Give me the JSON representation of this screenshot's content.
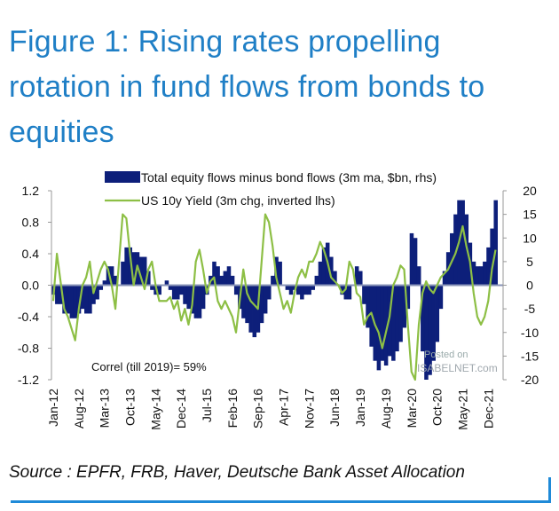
{
  "title": "Figure 1: Rising rates propelling rotation in fund flows from bonds to equities",
  "source": "Source : EPFR, FRB, Haver, Deutsche Bank Asset Allocation",
  "watermark": {
    "line1": "Posted on",
    "line2": "ISABELNET.com"
  },
  "chart_data": {
    "type": "bar+line",
    "title": "",
    "annotation": "Correl (till 2019)= 59%",
    "x_tick_labels": [
      "Jan-12",
      "Aug-12",
      "Mar-13",
      "Oct-13",
      "May-14",
      "Dec-14",
      "Jul-15",
      "Feb-16",
      "Sep-16",
      "Apr-17",
      "Nov-17",
      "Jun-18",
      "Jan-19",
      "Aug-19",
      "Mar-20",
      "Oct-20",
      "May-21",
      "Dec-21"
    ],
    "x_start": "Jan-12",
    "x_frequency": "monthly",
    "left_axis": {
      "range": [
        -1.2,
        1.2
      ],
      "ticks": [
        "1.2",
        "0.8",
        "0.4",
        "0.0",
        "-0.4",
        "-0.8",
        "-1.2"
      ],
      "inverted_series": true
    },
    "right_axis": {
      "range": [
        -20,
        20
      ],
      "ticks": [
        "20",
        "15",
        "10",
        "5",
        "0",
        "-5",
        "-10",
        "-15",
        "-20"
      ]
    },
    "legend_placement": "top",
    "grid": false,
    "series": [
      {
        "name": "Total equity flows minus bond flows (3m ma, $bn, rhs)",
        "type": "bar",
        "axis": "right",
        "color": "#0d1f7a",
        "values": [
          -2,
          -4,
          -4,
          -6,
          -6,
          -7,
          -7,
          -6,
          -5,
          -6,
          -6,
          -4,
          -3,
          -1,
          1,
          4,
          4,
          2,
          0,
          5,
          8,
          8,
          7,
          7,
          6,
          6,
          3,
          -1,
          -2,
          -2,
          0,
          1,
          -1,
          -3,
          -3,
          -2,
          -4,
          -5,
          -6,
          -7,
          -7,
          -5,
          -2,
          2,
          5,
          4,
          2,
          3,
          4,
          2,
          -2,
          -5,
          -7,
          -8,
          -10,
          -11,
          -10,
          -8,
          -6,
          -3,
          2,
          6,
          5,
          0,
          -1,
          -2,
          -1,
          -2,
          -3,
          -2,
          -2,
          -1,
          2,
          5,
          8,
          9,
          6,
          3,
          0,
          -2,
          -3,
          -3,
          0,
          4,
          3,
          -4,
          -9,
          -13,
          -16,
          -18,
          -16,
          -17,
          -15,
          -16,
          -14,
          -12,
          -9,
          -5,
          11,
          10,
          4,
          -14,
          -20,
          -19,
          -16,
          -12,
          -5,
          3,
          7,
          11,
          15,
          18,
          18,
          15,
          9,
          5,
          4,
          4,
          5,
          8,
          12,
          18
        ]
      },
      {
        "name": "US 10y Yield (3m chg, inverted lhs)",
        "type": "line",
        "axis": "left",
        "color": "#8dbf45",
        "values": [
          -0.2,
          0.4,
          0.05,
          -0.3,
          -0.4,
          -0.55,
          -0.7,
          -0.3,
          0.0,
          0.1,
          0.3,
          -0.1,
          0.05,
          0.2,
          0.3,
          0.2,
          0.0,
          -0.3,
          0.3,
          0.9,
          0.85,
          0.4,
          0.0,
          0.25,
          0.1,
          -0.05,
          0.2,
          0.3,
          0.0,
          -0.2,
          -0.2,
          -0.2,
          -0.15,
          -0.3,
          -0.2,
          -0.45,
          -0.3,
          -0.5,
          -0.25,
          0.3,
          0.45,
          0.2,
          -0.1,
          0.05,
          0.1,
          -0.2,
          -0.3,
          -0.2,
          -0.3,
          -0.4,
          -0.6,
          -0.2,
          0.2,
          -0.1,
          -0.2,
          -0.25,
          -0.3,
          0.3,
          0.9,
          0.8,
          0.5,
          0.1,
          -0.1,
          -0.3,
          -0.2,
          -0.35,
          -0.1,
          0.1,
          0.2,
          0.1,
          0.3,
          0.3,
          0.4,
          0.55,
          0.45,
          0.3,
          0.1,
          0.05,
          0.0,
          -0.1,
          -0.05,
          0.3,
          0.2,
          -0.1,
          -0.15,
          -0.5,
          -0.4,
          -0.35,
          -0.5,
          -0.6,
          -0.8,
          -0.6,
          -0.4,
          0.0,
          0.1,
          0.25,
          0.2,
          -0.5,
          -1.1,
          -1.2,
          -0.5,
          -0.1,
          0.05,
          -0.05,
          -0.1,
          0.0,
          0.1,
          0.15,
          0.2,
          0.3,
          0.4,
          0.55,
          0.75,
          0.5,
          0.3,
          -0.1,
          -0.4,
          -0.5,
          -0.4,
          -0.2,
          0.2,
          0.45
        ]
      }
    ]
  }
}
